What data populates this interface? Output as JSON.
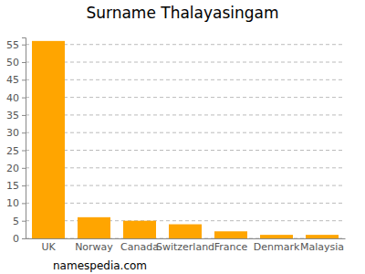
{
  "chart_data": {
    "type": "bar",
    "title": "Surname Thalayasingam",
    "categories": [
      "UK",
      "Norway",
      "Canada",
      "Switzerland",
      "France",
      "Denmark",
      "Malaysia"
    ],
    "values": [
      56,
      6,
      5,
      4,
      2,
      1,
      1
    ],
    "color": "#ffa500",
    "ylim": [
      0,
      57
    ],
    "yticks": [
      0,
      5,
      10,
      15,
      20,
      25,
      30,
      35,
      40,
      45,
      50,
      55
    ],
    "grid": true,
    "annotation": "namespedia.com"
  }
}
